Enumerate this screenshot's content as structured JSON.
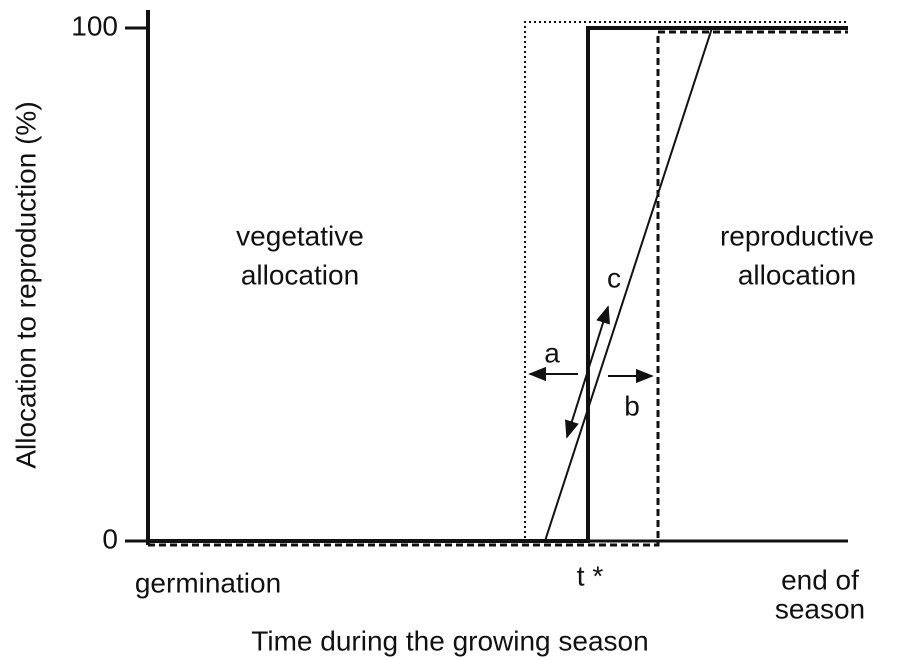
{
  "y_axis": {
    "label": "Allocation to reproduction (%)",
    "ticks": [
      0,
      100
    ]
  },
  "x_axis": {
    "label": "Time during the growing season",
    "start": "germination",
    "switch": "t *",
    "end_line1": "end of",
    "end_line2": "season"
  },
  "regions": {
    "left_line1": "vegetative",
    "left_line2": "allocation",
    "right_line1": "reproductive",
    "right_line2": "allocation"
  },
  "arrows": {
    "a": "a",
    "b": "b",
    "c": "c"
  }
}
